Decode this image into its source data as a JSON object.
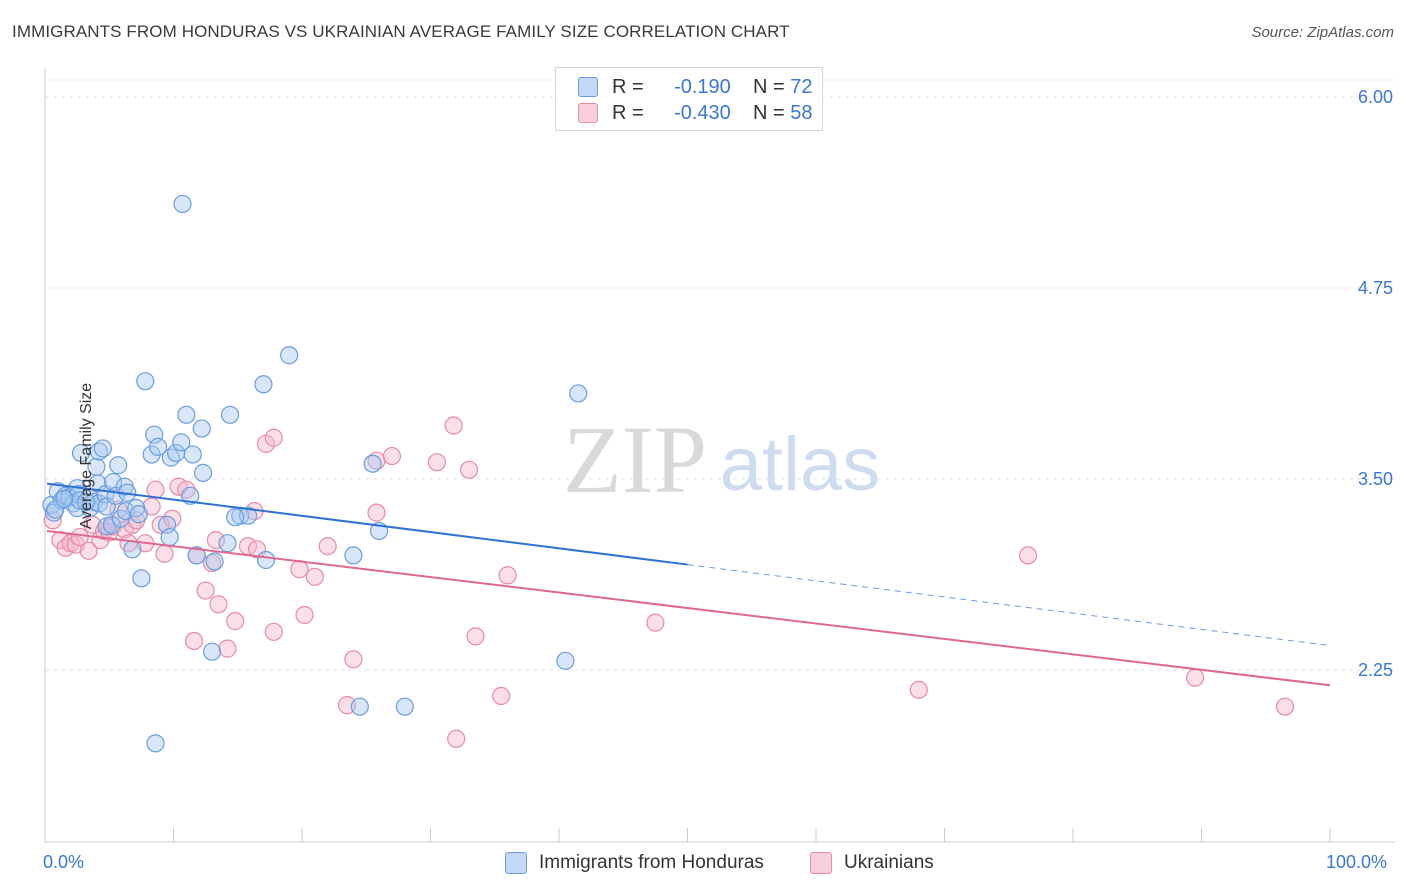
{
  "header": {
    "title": "IMMIGRANTS FROM HONDURAS VS UKRAINIAN AVERAGE FAMILY SIZE CORRELATION CHART",
    "source": "Source: ZipAtlas.com"
  },
  "watermark": {
    "zip": "ZIP",
    "atlas": "atlas"
  },
  "legend_top": [
    {
      "r_label": "R =",
      "r_value": "-0.190",
      "n_label": "N =",
      "n_value": "72"
    },
    {
      "r_label": "R =",
      "r_value": "-0.430",
      "n_label": "N =",
      "n_value": "58"
    }
  ],
  "x_axis": {
    "min_label": "0.0%",
    "max_label": "100.0%"
  },
  "colors": {
    "blue_fill": "#a9c8f0",
    "blue_stroke": "#6a9ee0",
    "blue_line": "#2f72d6",
    "pink_fill": "#f5b8cb",
    "pink_stroke": "#e98aa8",
    "pink_line": "#e06890",
    "axis_text": "#3a77d6",
    "grid": "#e3e3e3"
  },
  "chart_data": {
    "type": "scatter",
    "title": "IMMIGRANTS FROM HONDURAS VS UKRAINIAN AVERAGE FAMILY SIZE CORRELATION CHART",
    "xlabel": "",
    "ylabel": "Average Family Size",
    "xlim": [
      0,
      100
    ],
    "ylim": [
      1.0,
      6.1
    ],
    "yticks": [
      2.25,
      3.5,
      4.75,
      6.0
    ],
    "ytick_labels": [
      "2.25",
      "3.50",
      "4.75",
      "6.00"
    ],
    "xtick_labels": [
      "0.0%",
      "100.0%"
    ],
    "grid": true,
    "legend_placement": "top-center",
    "series": [
      {
        "name": "Immigrants from Honduras",
        "color": "#6a9ee0",
        "trend": {
          "x": [
            0,
            50,
            100
          ],
          "y": [
            3.47,
            2.94,
            2.41
          ],
          "solid_until": 50
        },
        "points": [
          [
            0.5,
            3.33
          ],
          [
            0.7,
            3.28
          ],
          [
            1.0,
            3.42
          ],
          [
            1.3,
            3.36
          ],
          [
            1.6,
            3.39
          ],
          [
            1.9,
            3.38
          ],
          [
            2.2,
            3.34
          ],
          [
            2.5,
            3.31
          ],
          [
            2.5,
            3.44
          ],
          [
            2.6,
            3.4
          ],
          [
            2.7,
            3.36
          ],
          [
            2.8,
            3.67
          ],
          [
            3.5,
            3.38
          ],
          [
            3.5,
            3.31
          ],
          [
            3.8,
            3.35
          ],
          [
            4.0,
            3.58
          ],
          [
            4.1,
            3.47
          ],
          [
            4.2,
            3.34
          ],
          [
            4.2,
            3.68
          ],
          [
            4.5,
            3.7
          ],
          [
            4.7,
            3.4
          ],
          [
            4.8,
            3.19
          ],
          [
            4.8,
            3.32
          ],
          [
            5.2,
            3.2
          ],
          [
            5.3,
            3.48
          ],
          [
            5.5,
            3.39
          ],
          [
            5.7,
            3.59
          ],
          [
            5.9,
            3.24
          ],
          [
            6.2,
            3.45
          ],
          [
            6.3,
            3.29
          ],
          [
            6.4,
            3.41
          ],
          [
            6.8,
            3.04
          ],
          [
            7.1,
            3.31
          ],
          [
            7.3,
            3.27
          ],
          [
            7.5,
            2.85
          ],
          [
            7.8,
            4.14
          ],
          [
            8.3,
            3.66
          ],
          [
            8.5,
            3.79
          ],
          [
            8.6,
            1.77
          ],
          [
            8.8,
            3.71
          ],
          [
            9.5,
            3.2
          ],
          [
            9.7,
            3.12
          ],
          [
            9.8,
            3.64
          ],
          [
            10.2,
            3.67
          ],
          [
            10.6,
            3.74
          ],
          [
            10.7,
            5.3
          ],
          [
            11.0,
            3.92
          ],
          [
            11.3,
            3.39
          ],
          [
            11.5,
            3.66
          ],
          [
            11.8,
            3.0
          ],
          [
            12.2,
            3.83
          ],
          [
            12.3,
            3.54
          ],
          [
            13.0,
            2.37
          ],
          [
            13.2,
            2.96
          ],
          [
            14.2,
            3.08
          ],
          [
            14.4,
            3.92
          ],
          [
            15.2,
            3.26
          ],
          [
            15.8,
            3.26
          ],
          [
            17.0,
            4.12
          ],
          [
            17.2,
            2.97
          ],
          [
            19.0,
            4.31
          ],
          [
            24.0,
            3.0
          ],
          [
            24.5,
            2.01
          ],
          [
            25.5,
            3.6
          ],
          [
            26.0,
            3.16
          ],
          [
            28.0,
            2.01
          ],
          [
            40.5,
            2.31
          ],
          [
            41.5,
            4.06
          ],
          [
            0.8,
            3.3
          ],
          [
            1.5,
            3.37
          ],
          [
            3.2,
            3.35
          ],
          [
            14.8,
            3.25
          ]
        ]
      },
      {
        "name": "Ukrainians",
        "color": "#e98aa8",
        "trend": {
          "x": [
            0,
            100
          ],
          "y": [
            3.16,
            2.15
          ],
          "solid_until": 100
        },
        "points": [
          [
            0.6,
            3.23
          ],
          [
            1.2,
            3.1
          ],
          [
            1.6,
            3.05
          ],
          [
            2.0,
            3.08
          ],
          [
            2.4,
            3.07
          ],
          [
            2.7,
            3.12
          ],
          [
            3.4,
            3.03
          ],
          [
            3.7,
            3.2
          ],
          [
            4.3,
            3.1
          ],
          [
            4.6,
            3.16
          ],
          [
            5.0,
            3.15
          ],
          [
            5.3,
            3.19
          ],
          [
            5.7,
            3.3
          ],
          [
            6.2,
            3.17
          ],
          [
            6.5,
            3.08
          ],
          [
            6.8,
            3.2
          ],
          [
            7.1,
            3.23
          ],
          [
            7.8,
            3.08
          ],
          [
            8.3,
            3.32
          ],
          [
            8.6,
            3.43
          ],
          [
            9.0,
            3.2
          ],
          [
            9.3,
            3.01
          ],
          [
            9.9,
            3.24
          ],
          [
            10.4,
            3.45
          ],
          [
            11.0,
            3.43
          ],
          [
            11.6,
            2.44
          ],
          [
            11.8,
            3.0
          ],
          [
            12.5,
            2.77
          ],
          [
            13.0,
            2.95
          ],
          [
            13.3,
            3.1
          ],
          [
            13.5,
            2.68
          ],
          [
            14.2,
            2.39
          ],
          [
            14.8,
            2.57
          ],
          [
            15.8,
            3.06
          ],
          [
            16.3,
            3.29
          ],
          [
            16.5,
            3.04
          ],
          [
            17.2,
            3.73
          ],
          [
            17.8,
            3.77
          ],
          [
            17.8,
            2.5
          ],
          [
            19.8,
            2.91
          ],
          [
            20.2,
            2.61
          ],
          [
            21.0,
            2.86
          ],
          [
            22.0,
            3.06
          ],
          [
            23.5,
            2.02
          ],
          [
            24.0,
            2.32
          ],
          [
            25.8,
            3.62
          ],
          [
            25.8,
            3.28
          ],
          [
            27.0,
            3.65
          ],
          [
            30.5,
            3.61
          ],
          [
            32.0,
            1.8
          ],
          [
            31.8,
            3.85
          ],
          [
            33.5,
            2.47
          ],
          [
            33.0,
            3.56
          ],
          [
            35.5,
            2.08
          ],
          [
            36.0,
            2.87
          ],
          [
            47.5,
            2.56
          ],
          [
            68.0,
            2.12
          ],
          [
            76.5,
            3.0
          ]
        ]
      }
    ],
    "extra_points_ukrainians": [
      [
        89.5,
        2.2
      ],
      [
        96.5,
        2.01
      ]
    ]
  },
  "legend_bottom": [
    {
      "label": "Immigrants from Honduras"
    },
    {
      "label": "Ukrainians"
    }
  ]
}
